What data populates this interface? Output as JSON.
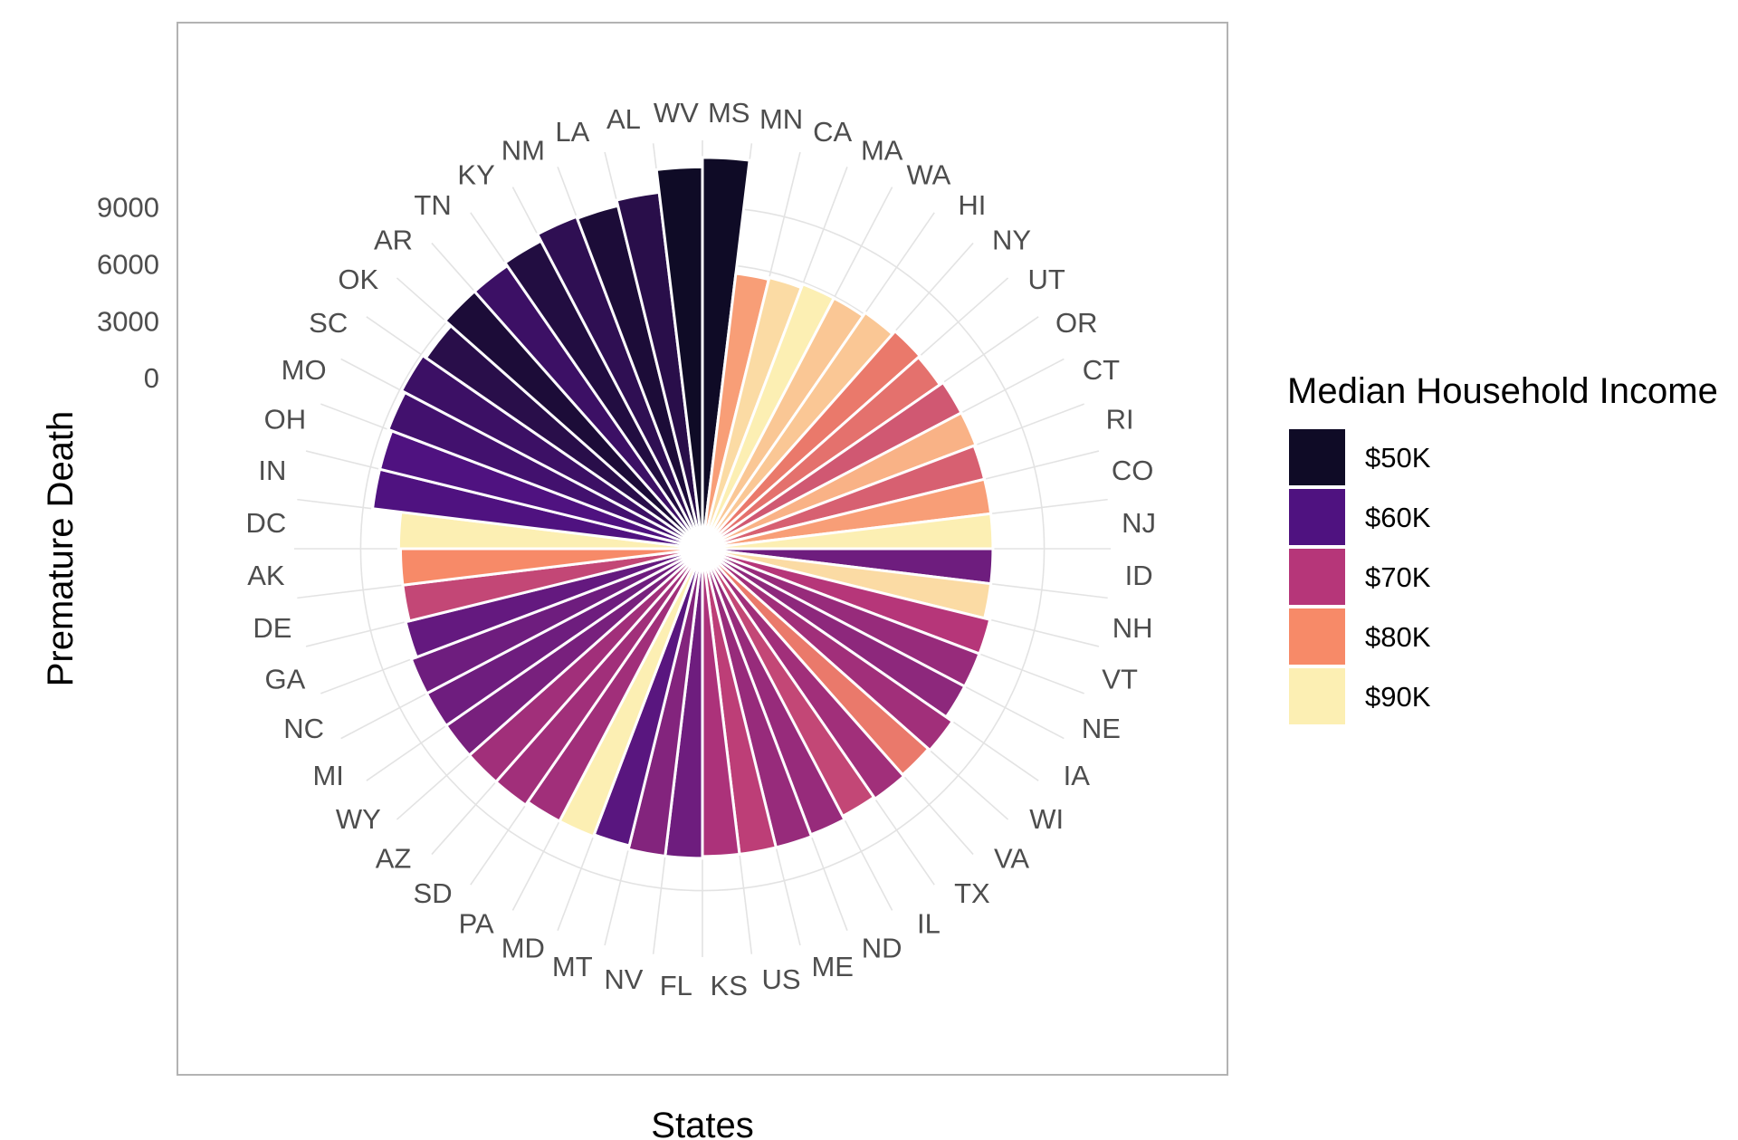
{
  "chart_data": {
    "type": "bar",
    "coord": "polar",
    "xlabel": "States",
    "ylabel": "Premature Death",
    "y_ticks": [
      0,
      3000,
      6000,
      9000
    ],
    "ylim": [
      -9000,
      12500
    ],
    "grid": true,
    "legend": {
      "title": "Median Household Income",
      "placement": "right",
      "items": [
        {
          "label": "$50K",
          "color": "#0f0b26"
        },
        {
          "label": "$60K",
          "color": "#4f1280"
        },
        {
          "label": "$70K",
          "color": "#b63679"
        },
        {
          "label": "$80K",
          "color": "#f78a68"
        },
        {
          "label": "$90K",
          "color": "#fcefb3"
        }
      ]
    },
    "categories": [
      "MS",
      "MN",
      "CA",
      "MA",
      "WA",
      "HI",
      "NY",
      "UT",
      "OR",
      "CT",
      "RI",
      "CO",
      "NJ",
      "ID",
      "NH",
      "VT",
      "NE",
      "IA",
      "WI",
      "VA",
      "TX",
      "IL",
      "ND",
      "ME",
      "US",
      "KS",
      "FL",
      "NV",
      "MT",
      "MD",
      "PA",
      "SD",
      "AZ",
      "WY",
      "MI",
      "NC",
      "GA",
      "DE",
      "AK",
      "DC",
      "IN",
      "OH",
      "MO",
      "SC",
      "OK",
      "AR",
      "TN",
      "KY",
      "NM",
      "LA",
      "AL",
      "WV"
    ],
    "values": [
      11600,
      5600,
      5700,
      5900,
      5900,
      6100,
      6300,
      6200,
      6400,
      6400,
      6300,
      6300,
      6300,
      6300,
      6300,
      6600,
      6600,
      6600,
      7000,
      6900,
      7000,
      6900,
      7100,
      7200,
      7200,
      7200,
      7300,
      7300,
      7100,
      7200,
      7200,
      7400,
      7400,
      7400,
      7400,
      7400,
      7100,
      6900,
      6900,
      7000,
      8500,
      8500,
      8700,
      8900,
      8700,
      9100,
      9100,
      9300,
      9700,
      9600,
      9900,
      11100
    ],
    "income": [
      48000,
      82000,
      88000,
      92000,
      86000,
      86000,
      78000,
      77000,
      74000,
      84000,
      75000,
      82000,
      90000,
      63000,
      88000,
      70000,
      67000,
      66000,
      68000,
      78000,
      68000,
      72000,
      67000,
      67000,
      71000,
      69000,
      63000,
      65000,
      61000,
      92000,
      68000,
      68000,
      68000,
      64000,
      63000,
      63000,
      62000,
      72000,
      80000,
      92000,
      60000,
      60000,
      58000,
      57000,
      54000,
      52000,
      57000,
      53000,
      55000,
      52000,
      54000,
      50000
    ]
  }
}
